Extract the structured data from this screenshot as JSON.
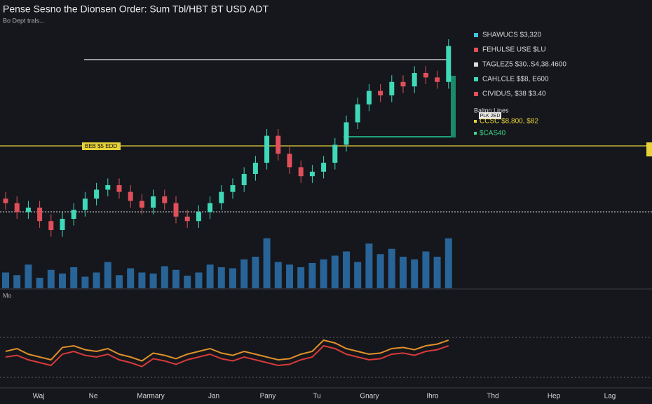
{
  "header": {
    "title": "Pense Sesno the Dionsen Order: Sum Tbl/HBT BT USD ADT",
    "subtitle": "Bo Dept trals..."
  },
  "price_tag": "BEB $5 EDD",
  "small_box": "PLK 2ED",
  "oscillator_label": "Mo",
  "legend": {
    "items": [
      {
        "label": "SHAWUCS $3,320",
        "color": "#3fc3e0"
      },
      {
        "label": "FEHULSE USE $LU",
        "color": "#e0505a"
      },
      {
        "label": "TAGLEZ5 $30..S4,38.4600",
        "color": "#dddddd"
      },
      {
        "label": "CAHLCLE $$8, E600",
        "color": "#3fd9b8"
      },
      {
        "label": "CIVIDUS, $38 $3.40",
        "color": "#e0505a"
      }
    ],
    "section": "Balton Lines",
    "lines": [
      {
        "label": "CCSC $8,800, $82",
        "color": "#e8d23a"
      },
      {
        "label": "$CAS40",
        "color": "#3fd98a"
      }
    ]
  },
  "x_labels": [
    "Waj",
    "Ne",
    "Marmary",
    "Jan",
    "Pany",
    "Tu",
    "Gnary",
    "Ihro",
    "Thd",
    "Hep",
    "Lag"
  ],
  "price_range": [
    0,
    100
  ],
  "up_color": "#3fd9b8",
  "down_color": "#e0505a",
  "candles": [
    [
      24,
      27,
      19,
      22
    ],
    [
      22,
      25,
      15,
      18
    ],
    [
      18,
      23,
      15,
      20
    ],
    [
      20,
      23,
      11,
      14
    ],
    [
      14,
      17,
      7,
      10
    ],
    [
      10,
      18,
      7,
      15
    ],
    [
      15,
      22,
      12,
      19
    ],
    [
      19,
      27,
      16,
      24
    ],
    [
      24,
      31,
      21,
      28
    ],
    [
      28,
      33,
      25,
      30
    ],
    [
      30,
      33,
      24,
      27
    ],
    [
      27,
      30,
      20,
      23
    ],
    [
      23,
      26,
      17,
      20
    ],
    [
      20,
      28,
      17,
      25
    ],
    [
      25,
      28,
      19,
      22
    ],
    [
      22,
      25,
      13,
      16
    ],
    [
      16,
      19,
      11,
      14
    ],
    [
      14,
      21,
      11,
      18
    ],
    [
      18,
      25,
      15,
      22
    ],
    [
      22,
      30,
      19,
      27
    ],
    [
      27,
      33,
      24,
      30
    ],
    [
      30,
      38,
      27,
      35
    ],
    [
      35,
      43,
      32,
      40
    ],
    [
      40,
      55,
      37,
      52
    ],
    [
      52,
      55,
      41,
      44
    ],
    [
      44,
      47,
      35,
      38
    ],
    [
      38,
      41,
      31,
      34
    ],
    [
      34,
      39,
      31,
      36
    ],
    [
      36,
      43,
      33,
      40
    ],
    [
      40,
      51,
      37,
      48
    ],
    [
      48,
      61,
      45,
      58
    ],
    [
      58,
      69,
      55,
      66
    ],
    [
      66,
      75,
      63,
      72
    ],
    [
      72,
      75,
      67,
      70
    ],
    [
      70,
      79,
      67,
      76
    ],
    [
      76,
      79,
      71,
      74
    ],
    [
      74,
      83,
      71,
      80
    ],
    [
      80,
      83,
      75,
      78
    ],
    [
      78,
      81,
      73,
      76
    ],
    [
      76,
      95,
      73,
      92
    ]
  ],
  "volume": [
    30,
    25,
    45,
    20,
    35,
    28,
    40,
    22,
    30,
    50,
    25,
    38,
    30,
    28,
    42,
    35,
    24,
    30,
    45,
    40,
    38,
    55,
    60,
    95,
    50,
    45,
    40,
    48,
    55,
    62,
    70,
    50,
    85,
    65,
    75,
    60,
    55,
    70,
    60,
    95
  ],
  "volume_color": "#2f7fc0",
  "oscillator": [
    {
      "color": "#e0902a",
      "values": [
        55,
        60,
        50,
        45,
        40,
        62,
        65,
        58,
        55,
        60,
        50,
        45,
        38,
        52,
        48,
        42,
        50,
        55,
        60,
        52,
        48,
        55,
        50,
        45,
        40,
        42,
        50,
        55,
        75,
        70,
        60,
        55,
        50,
        52,
        60,
        62,
        58,
        65,
        68,
        75
      ]
    },
    {
      "color": "#d83a3a",
      "values": [
        45,
        48,
        40,
        35,
        30,
        50,
        55,
        48,
        45,
        50,
        40,
        35,
        28,
        42,
        38,
        32,
        40,
        45,
        50,
        42,
        38,
        45,
        40,
        35,
        30,
        32,
        40,
        45,
        65,
        60,
        50,
        45,
        40,
        42,
        50,
        52,
        48,
        55,
        58,
        65
      ]
    }
  ]
}
